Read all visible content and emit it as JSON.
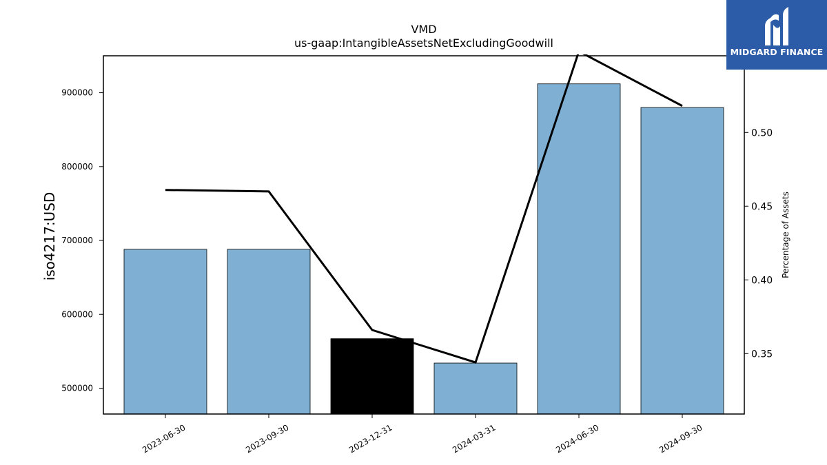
{
  "chart_data": {
    "type": "bar",
    "title": "VMD",
    "subtitle": "us-gaap:IntangibleAssetsNetExcludingGoodwill",
    "ylabel": "iso4217:USD",
    "y2label": "Percentage of Assets",
    "categories": [
      "2023-06-30",
      "2023-09-30",
      "2023-12-31",
      "2024-03-31",
      "2024-06-30",
      "2024-09-30"
    ],
    "series": [
      {
        "type": "bar",
        "axis": "left",
        "values": [
          688000,
          688000,
          567000,
          534000,
          912000,
          880000
        ],
        "colors": [
          "#7fb0d4",
          "#7fb0d4",
          "#000000",
          "#7fb0d4",
          "#7fb0d4",
          "#7fb0d4"
        ]
      },
      {
        "type": "line",
        "axis": "right",
        "values": [
          0.461,
          0.46,
          0.366,
          0.344,
          0.555,
          0.518
        ],
        "color": "#000000"
      }
    ],
    "ylim": [
      465000,
      950000
    ],
    "yticks": [
      500000,
      600000,
      700000,
      800000,
      900000
    ],
    "y2lim": [
      0.309,
      0.552
    ],
    "y2ticks": [
      0.35,
      0.4,
      0.45,
      0.5
    ],
    "y2ticklabels": [
      "0.35",
      "0.40",
      "0.45",
      "0.50"
    ],
    "grid": false
  },
  "logo": {
    "text": "MIDGARD FINANCE",
    "icon": "midgard-logo-icon",
    "background": "#2c5ba8"
  }
}
